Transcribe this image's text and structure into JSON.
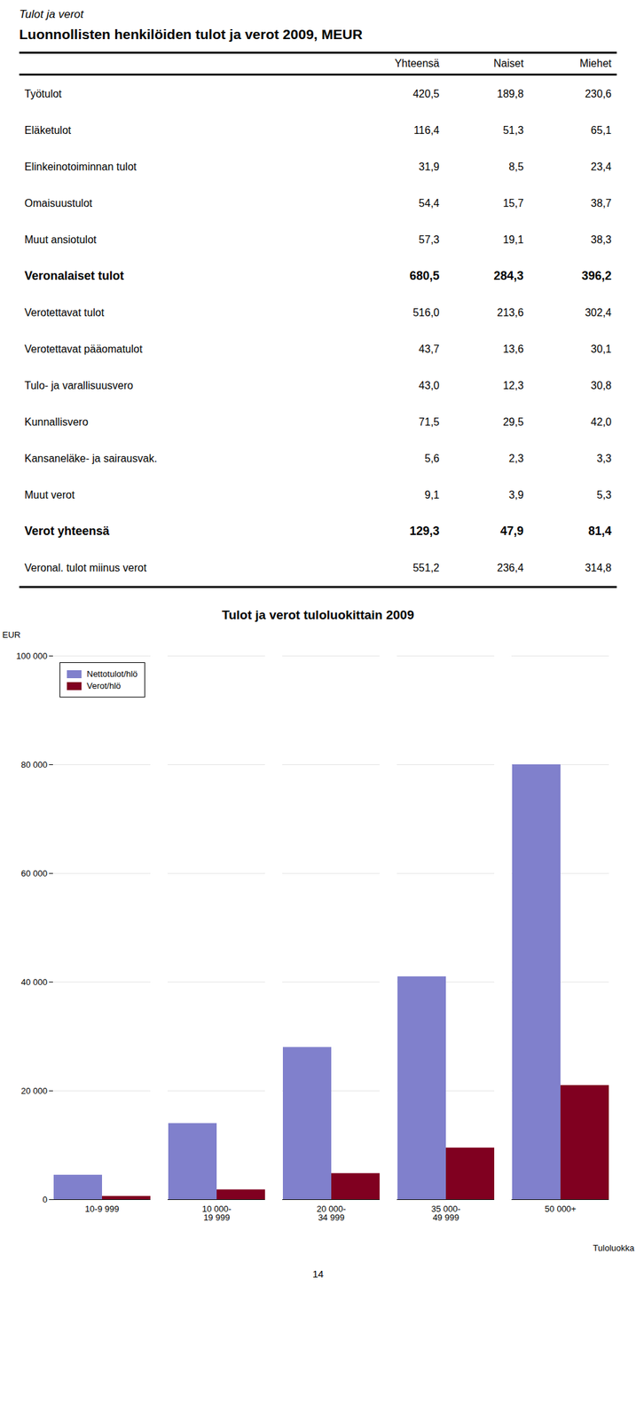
{
  "page_title": "Tulot ja verot",
  "table": {
    "title": "Luonnollisten henkilöiden tulot ja verot 2009, MEUR",
    "columns": [
      "Yhteensä",
      "Naiset",
      "Miehet"
    ],
    "rows": [
      {
        "label": "Työtulot",
        "values": [
          "420,5",
          "189,8",
          "230,6"
        ],
        "bold": false
      },
      {
        "label": "Eläketulot",
        "values": [
          "116,4",
          "51,3",
          "65,1"
        ],
        "bold": false
      },
      {
        "label": "Elinkeinotoiminnan tulot",
        "values": [
          "31,9",
          "8,5",
          "23,4"
        ],
        "bold": false
      },
      {
        "label": "Omaisuustulot",
        "values": [
          "54,4",
          "15,7",
          "38,7"
        ],
        "bold": false
      },
      {
        "label": "Muut ansiotulot",
        "values": [
          "57,3",
          "19,1",
          "38,3"
        ],
        "bold": false
      },
      {
        "label": "Veronalaiset tulot",
        "values": [
          "680,5",
          "284,3",
          "396,2"
        ],
        "bold": true
      },
      {
        "label": "Verotettavat tulot",
        "values": [
          "516,0",
          "213,6",
          "302,4"
        ],
        "bold": false
      },
      {
        "label": "Verotettavat pääomatulot",
        "values": [
          "43,7",
          "13,6",
          "30,1"
        ],
        "bold": false
      },
      {
        "label": "Tulo- ja varallisuusvero",
        "values": [
          "43,0",
          "12,3",
          "30,8"
        ],
        "bold": false
      },
      {
        "label": "Kunnallisvero",
        "values": [
          "71,5",
          "29,5",
          "42,0"
        ],
        "bold": false
      },
      {
        "label": "Kansaneläke- ja sairausvak.",
        "values": [
          "5,6",
          "2,3",
          "3,3"
        ],
        "bold": false
      },
      {
        "label": "Muut verot",
        "values": [
          "9,1",
          "3,9",
          "5,3"
        ],
        "bold": false
      },
      {
        "label": "Verot yhteensä",
        "values": [
          "129,3",
          "47,9",
          "81,4"
        ],
        "bold": true
      },
      {
        "label": "Veronal. tulot miinus verot",
        "values": [
          "551,2",
          "236,4",
          "314,8"
        ],
        "bold": false
      }
    ]
  },
  "chart_data": {
    "type": "bar",
    "title": "Tulot ja verot tuloluokittain 2009",
    "ylabel": "EUR",
    "xlabel": "Tuloluokka",
    "categories": [
      "10-9 999",
      "10 000-\n19 999",
      "20 000-\n34 999",
      "35 000-\n49 999",
      "50 000+"
    ],
    "series": [
      {
        "name": "Nettotulot/hlö",
        "color": "#8080CC",
        "values": [
          4500,
          14000,
          28000,
          41000,
          80000
        ]
      },
      {
        "name": "Verot/hlö",
        "color": "#800020",
        "values": [
          600,
          1800,
          4800,
          9500,
          21000
        ]
      }
    ],
    "ylim": [
      0,
      100000
    ],
    "yticks": [
      0,
      {
        "value": 20000,
        "label": "20 000"
      },
      {
        "value": 40000,
        "label": "40 000"
      },
      {
        "value": 60000,
        "label": "60 000"
      },
      {
        "value": 80000,
        "label": "80 000"
      },
      {
        "value": 100000,
        "label": "100 000"
      }
    ],
    "grid": true,
    "legend": "upper left"
  },
  "page_number": 14
}
